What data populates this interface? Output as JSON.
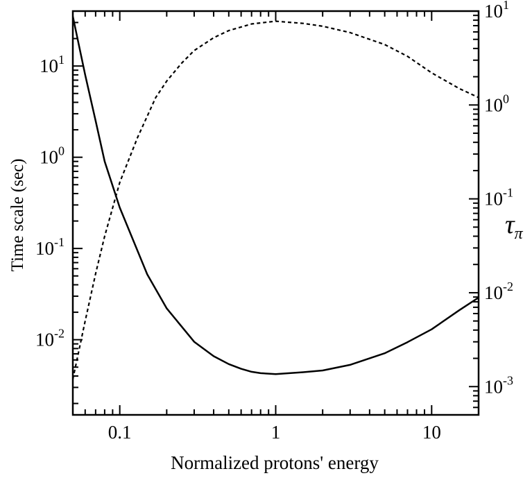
{
  "chart_data": {
    "type": "line",
    "xlabel": "Normalized protons' energy",
    "ylabel_left": "Time scale (sec)",
    "ylabel_right_symbol": "τ",
    "ylabel_right_subscript": "π",
    "x_scale": "log",
    "y_left_scale": "log",
    "y_right_scale": "log",
    "xlim": [
      0.05,
      20
    ],
    "ylim_left": [
      0.0015,
      40
    ],
    "ylim_right": [
      0.0005,
      10
    ],
    "x_ticks": [
      {
        "value": 0.1,
        "label": "0.1"
      },
      {
        "value": 1,
        "label": "1"
      },
      {
        "value": 10,
        "label": "10"
      }
    ],
    "y_left_ticks": [
      {
        "value": 0.01,
        "base": "10",
        "exp": "-2"
      },
      {
        "value": 0.1,
        "base": "10",
        "exp": "-1"
      },
      {
        "value": 1,
        "base": "10",
        "exp": "0"
      },
      {
        "value": 10,
        "base": "10",
        "exp": "1"
      }
    ],
    "y_right_ticks": [
      {
        "value": 0.001,
        "base": "10",
        "exp": "-3"
      },
      {
        "value": 0.01,
        "base": "10",
        "exp": "-2"
      },
      {
        "value": 0.1,
        "base": "10",
        "exp": "-1"
      },
      {
        "value": 1,
        "base": "10",
        "exp": "0"
      },
      {
        "value": 10,
        "base": "10",
        "exp": "1"
      }
    ],
    "grid": false,
    "series": [
      {
        "axis": "left",
        "style": "solid",
        "x": [
          0.05,
          0.06,
          0.07,
          0.08,
          0.1,
          0.15,
          0.2,
          0.3,
          0.4,
          0.5,
          0.6,
          0.7,
          0.8,
          1,
          1.5,
          2,
          3,
          5,
          7,
          10,
          15,
          20
        ],
        "y": [
          35,
          8,
          2.5,
          0.9,
          0.28,
          0.052,
          0.022,
          0.0095,
          0.0066,
          0.0054,
          0.0048,
          0.00445,
          0.0043,
          0.0042,
          0.0044,
          0.0046,
          0.0053,
          0.0071,
          0.0094,
          0.013,
          0.021,
          0.029
        ]
      },
      {
        "axis": "right",
        "style": "dashed",
        "x": [
          0.05,
          0.06,
          0.07,
          0.08,
          0.1,
          0.13,
          0.17,
          0.2,
          0.25,
          0.3,
          0.4,
          0.5,
          0.7,
          1,
          1.5,
          2,
          3,
          5,
          7,
          10,
          15,
          20
        ],
        "y": [
          0.0012,
          0.005,
          0.016,
          0.04,
          0.15,
          0.45,
          1.2,
          1.8,
          2.8,
          3.8,
          5.2,
          6.2,
          7.3,
          7.8,
          7.4,
          6.9,
          5.9,
          4.4,
          3.3,
          2.2,
          1.5,
          1.2
        ]
      }
    ]
  }
}
